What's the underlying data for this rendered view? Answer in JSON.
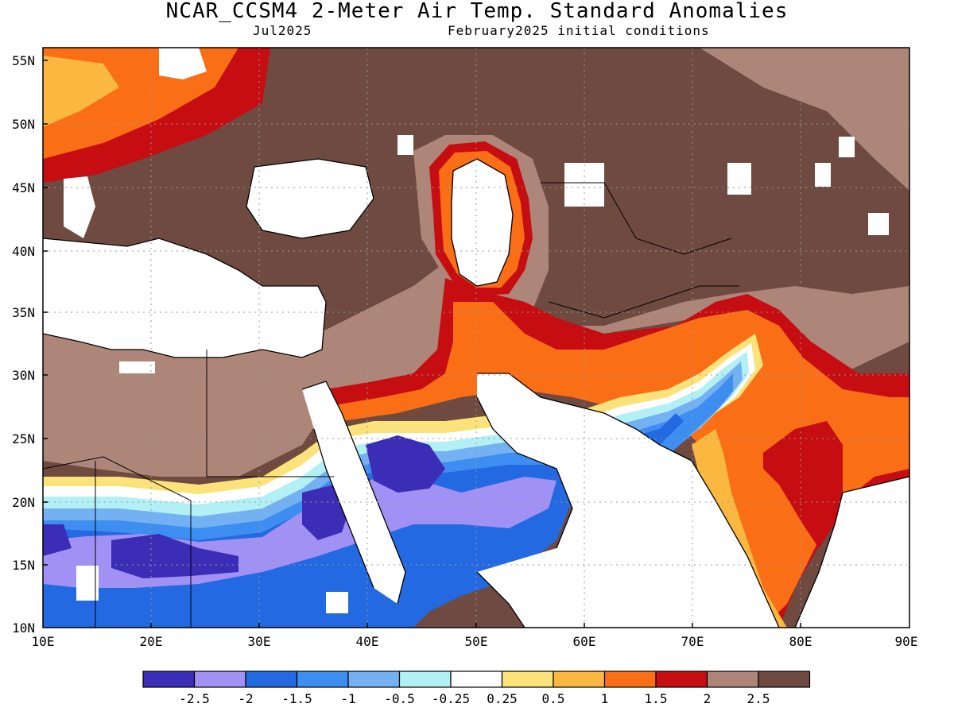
{
  "title": "NCAR_CCSM4 2-Meter Air Temp. Standard Anomalies",
  "subtitle_left": "Jul2025",
  "subtitle_right": "February2025 initial conditions",
  "lat_labels": [
    "55N",
    "50N",
    "45N",
    "40N",
    "35N",
    "30N",
    "25N",
    "20N",
    "15N",
    "10N"
  ],
  "lon_labels": [
    "10E",
    "20E",
    "30E",
    "40E",
    "50E",
    "60E",
    "70E",
    "80E",
    "90E"
  ],
  "colorbar": {
    "colors": [
      "#3b2db5",
      "#a291f5",
      "#2369e1",
      "#3d8ef0",
      "#74b1f3",
      "#b2f0f6",
      "#ffffff",
      "#fbe27a",
      "#fbb840",
      "#fa6e16",
      "#c50d12",
      "#ad8579",
      "#6f4a41"
    ],
    "labels": [
      "-2.5",
      "-2",
      "-1.5",
      "-1",
      "-0.5",
      "-0.25",
      "0.25",
      "0.5",
      "1",
      "1.5",
      "2",
      "2.5"
    ]
  },
  "palette": {
    "frame": "#000000",
    "grid": "#9a9a9a",
    "coast": "#000000"
  }
}
